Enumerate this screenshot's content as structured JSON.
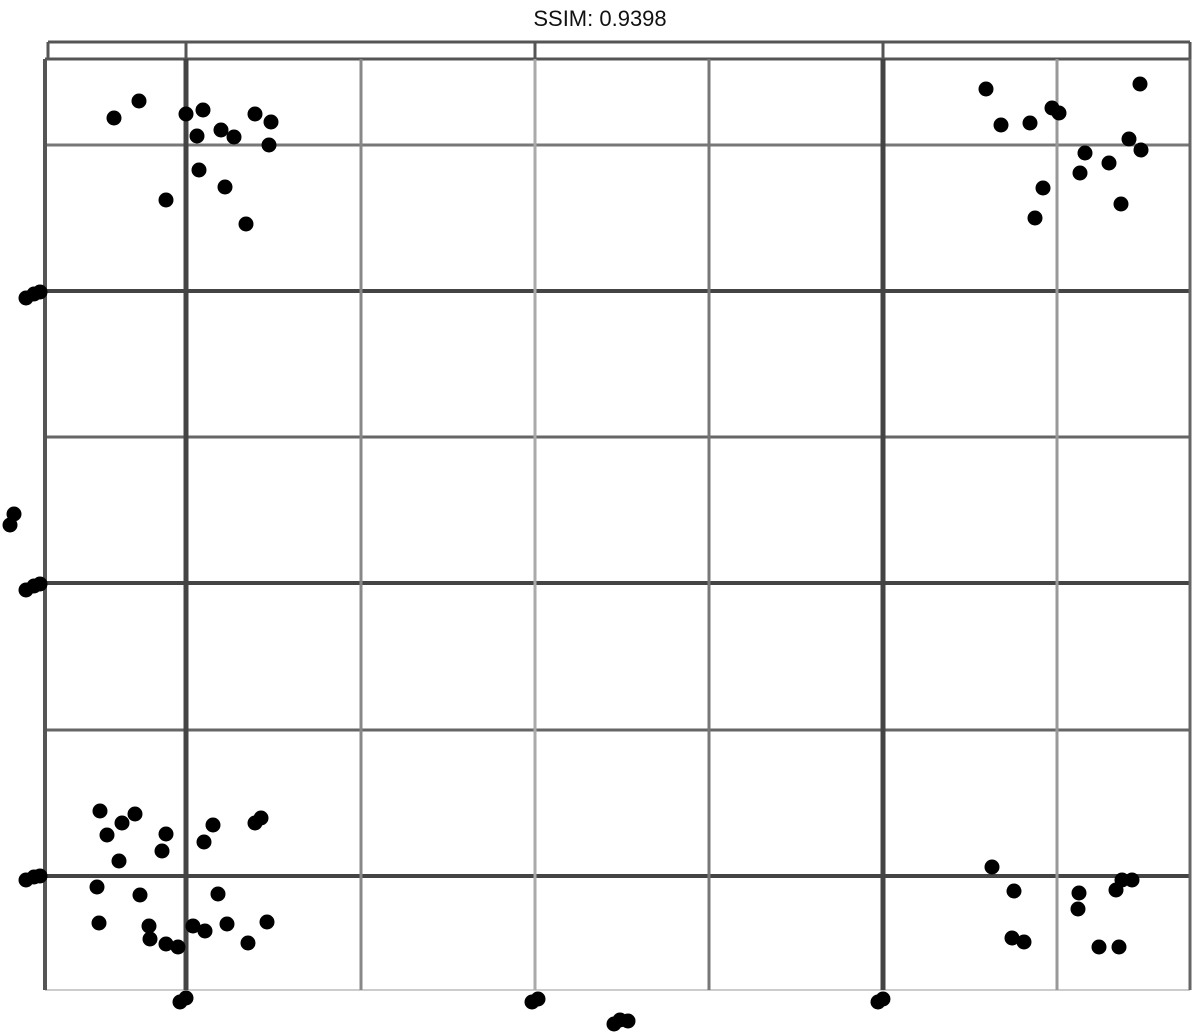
{
  "title": "SSIM: 0.9398"
}
